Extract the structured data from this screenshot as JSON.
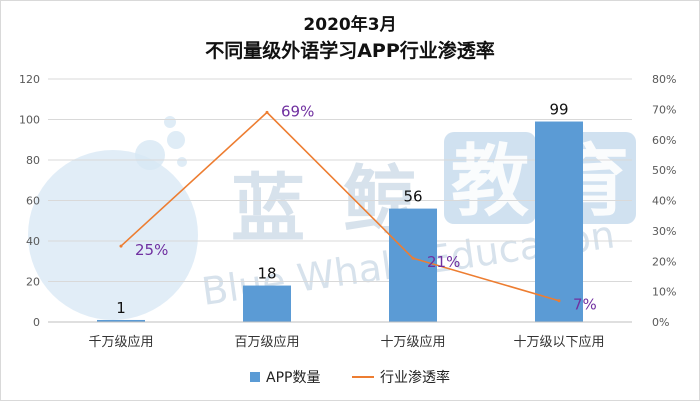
{
  "title_line1": "2020年3月",
  "title_line2": "不同量级外语学习APP行业渗透率",
  "watermark": {
    "cn": [
      "蓝",
      "鲸",
      "教",
      "育"
    ],
    "en": "Blue Whale Education"
  },
  "colors": {
    "bar": "#5b9bd5",
    "line": "#ed7d31",
    "line_label": "#7030a0",
    "grid": "#d9d9d9",
    "watermark": "#c7d6e4"
  },
  "chart_data": {
    "type": "bar",
    "categories": [
      "千万级应用",
      "百万级应用",
      "十万级应用",
      "十万级以下应用"
    ],
    "series": [
      {
        "name": "APP数量",
        "type": "bar",
        "axis": "left",
        "values": [
          1,
          18,
          56,
          99
        ],
        "labels": [
          "1",
          "18",
          "56",
          "99"
        ]
      },
      {
        "name": "行业渗透率",
        "type": "line",
        "axis": "right",
        "values": [
          25,
          69,
          21,
          7
        ],
        "labels": [
          "25%",
          "69%",
          "21%",
          "7%"
        ]
      }
    ],
    "y_left": {
      "min": 0,
      "max": 120,
      "step": 20,
      "ticks": [
        "0",
        "20",
        "40",
        "60",
        "80",
        "100",
        "120"
      ]
    },
    "y_right": {
      "min": 0,
      "max": 80,
      "step": 10,
      "ticks": [
        "0%",
        "10%",
        "20%",
        "30%",
        "40%",
        "50%",
        "60%",
        "70%",
        "80%"
      ]
    },
    "grid": true,
    "legend": {
      "position": "bottom",
      "items": [
        "APP数量",
        "行业渗透率"
      ]
    }
  }
}
